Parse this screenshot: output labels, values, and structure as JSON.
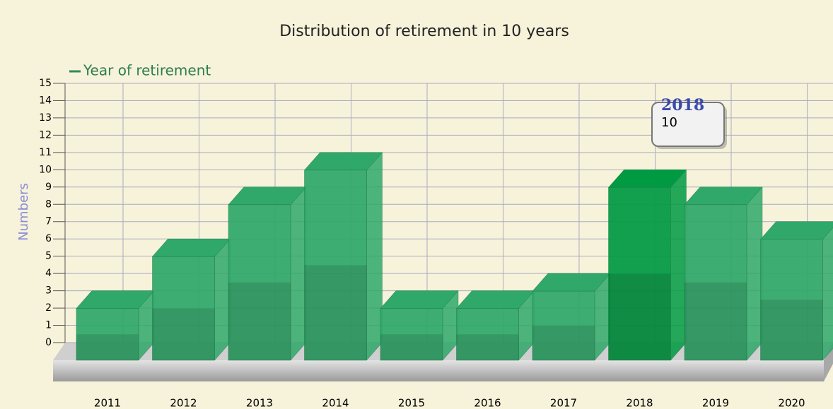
{
  "chart_data": {
    "type": "bar3d",
    "title": "Distribution of retirement in 10 years",
    "y_label": "Numbers",
    "categories": [
      "2011",
      "2012",
      "2013",
      "2014",
      "2015",
      "2016",
      "2017",
      "2018",
      "2019",
      "2020"
    ],
    "series": [
      {
        "name": "Year of retirement",
        "color": "#2fa86a",
        "values": [
          3,
          6,
          9,
          11,
          3,
          3,
          4,
          10,
          9,
          7
        ]
      }
    ],
    "active_color": "#009a43",
    "ylim": [
      0,
      15
    ],
    "yticks": [
      0,
      1,
      2,
      3,
      4,
      5,
      6,
      7,
      8,
      9,
      10,
      11,
      12,
      13,
      14,
      15
    ],
    "grid": true
  }
}
